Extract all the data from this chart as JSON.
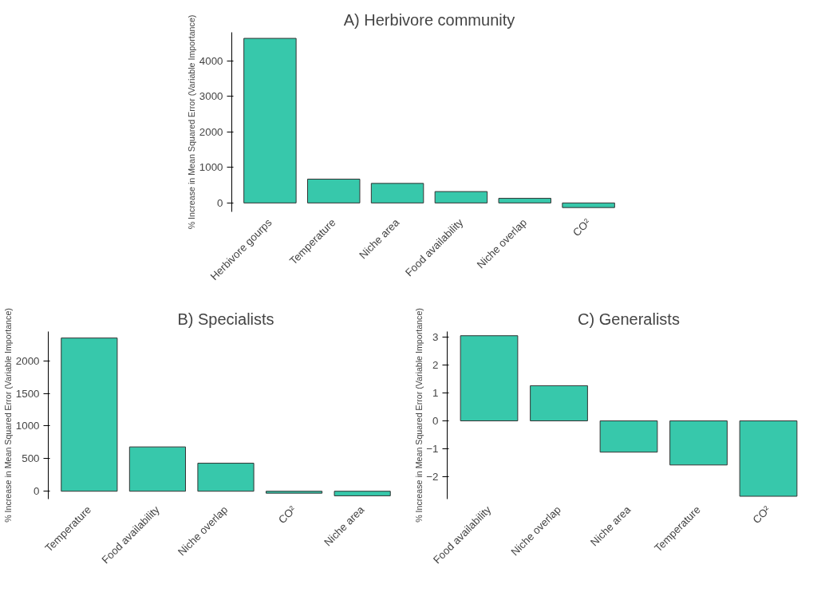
{
  "chart_data": [
    {
      "type": "bar",
      "title": "A) Herbivore community",
      "ylabel": "% Increase in Mean Squared Error (Variable Importance)",
      "categories": [
        "Herbivore gourps",
        "Temperature",
        "Niche area",
        "Food availability",
        "Niche overlap",
        "CO²"
      ],
      "values": [
        4630,
        670,
        550,
        320,
        130,
        -130
      ],
      "color": "#37c8ab",
      "ylim": [
        -250,
        4800
      ],
      "yticks": [
        0,
        1000,
        2000,
        3000,
        4000
      ]
    },
    {
      "type": "bar",
      "title": "B) Specialists",
      "ylabel": "% Increase in Mean Squared Error (Variable Importance)",
      "categories": [
        "Temperature",
        "Food availability",
        "Niche overlap",
        "CO²",
        "Niche area"
      ],
      "values": [
        2350,
        680,
        430,
        -30,
        -70
      ],
      "color": "#37c8ab",
      "ylim": [
        -120,
        2450
      ],
      "yticks": [
        0,
        500,
        1000,
        1500,
        2000
      ]
    },
    {
      "type": "bar",
      "title": "C) Generalists",
      "ylabel": "% Increase in Mean Squared Error (Variable Importance)",
      "categories": [
        "Food availability",
        "Niche overlap",
        "Niche area",
        "Temperature",
        "CO²"
      ],
      "values": [
        3.05,
        1.26,
        -1.12,
        -1.58,
        -2.7
      ],
      "color": "#37c8ab",
      "ylim": [
        -2.8,
        3.2
      ],
      "yticks": [
        -2,
        -1,
        0,
        1,
        2,
        3
      ]
    }
  ]
}
